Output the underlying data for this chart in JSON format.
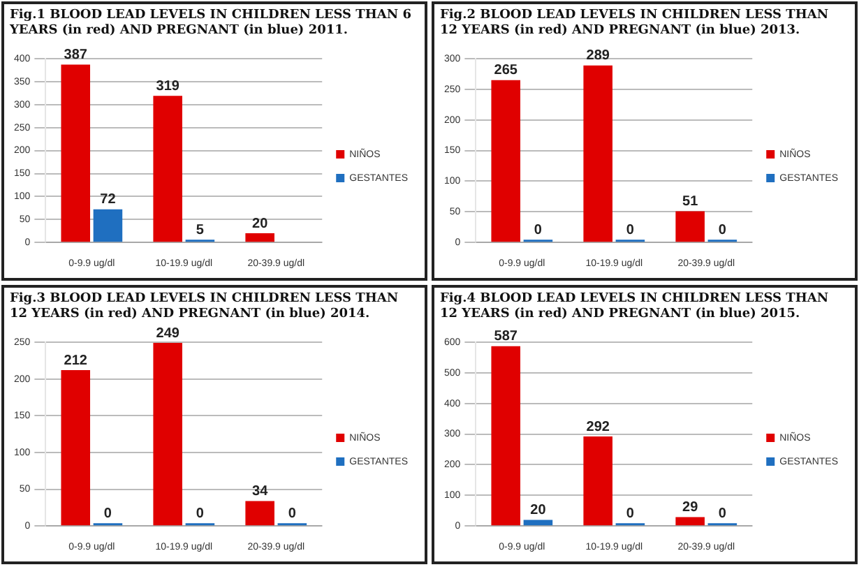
{
  "chart_data": [
    {
      "type": "bar",
      "title": "Fig.1 BLOOD LEAD LEVELS IN CHILDREN LESS THAN 6 YEARS (in red) AND PREGNANT (in blue) 2011.",
      "categories": [
        "0-9.9 ug/dl",
        "10-19.9 ug/dl",
        "20-39.9 ug/dl"
      ],
      "series": [
        {
          "name": "NIÑOS",
          "color": "#e00000",
          "values": [
            387,
            319,
            20
          ]
        },
        {
          "name": "GESTANTES",
          "color": "#1f6fc0",
          "values": [
            72,
            5,
            null
          ]
        }
      ],
      "ylim": [
        0,
        400
      ],
      "yticks": [
        0,
        50,
        100,
        150,
        200,
        250,
        300,
        350,
        400
      ],
      "grid": "y",
      "legend": "right",
      "data_labels": true
    },
    {
      "type": "bar",
      "title": "Fig.2 BLOOD LEAD LEVELS IN CHILDREN LESS THAN 12 YEARS (in red) AND PREGNANT (in blue) 2013.",
      "categories": [
        "0-9.9 ug/dl",
        "10-19.9 ug/dl",
        "20-39.9 ug/dl"
      ],
      "series": [
        {
          "name": "NIÑOS",
          "color": "#e00000",
          "values": [
            265,
            289,
            51
          ]
        },
        {
          "name": "GESTANTES",
          "color": "#1f6fc0",
          "values": [
            0,
            0,
            0
          ]
        }
      ],
      "ylim": [
        0,
        300
      ],
      "yticks": [
        0,
        50,
        100,
        150,
        200,
        250,
        300
      ],
      "grid": "y",
      "legend": "right",
      "data_labels": true
    },
    {
      "type": "bar",
      "title": "Fig.3 BLOOD LEAD LEVELS IN CHILDREN LESS THAN 12 YEARS (in red) AND PREGNANT (in blue) 2014.",
      "categories": [
        "0-9.9 ug/dl",
        "10-19.9 ug/dl",
        "20-39.9 ug/dl"
      ],
      "series": [
        {
          "name": "NIÑOS",
          "color": "#e00000",
          "values": [
            212,
            249,
            34
          ]
        },
        {
          "name": "GESTANTES",
          "color": "#1f6fc0",
          "values": [
            0,
            0,
            0
          ]
        }
      ],
      "ylim": [
        0,
        250
      ],
      "yticks": [
        0,
        50,
        100,
        150,
        200,
        250
      ],
      "grid": "y",
      "legend": "right",
      "data_labels": true
    },
    {
      "type": "bar",
      "title": "Fig.4 BLOOD LEAD LEVELS IN CHILDREN LESS THAN 12 YEARS (in red) AND PREGNANT (in blue) 2015.",
      "categories": [
        "0-9.9 ug/dl",
        "10-19.9 ug/dl",
        "20-39.9 ug/dl"
      ],
      "series": [
        {
          "name": "NIÑOS",
          "color": "#e00000",
          "values": [
            587,
            292,
            29
          ]
        },
        {
          "name": "GESTANTES",
          "color": "#1f6fc0",
          "values": [
            20,
            0,
            0
          ]
        }
      ],
      "ylim": [
        0,
        600
      ],
      "yticks": [
        0,
        100,
        200,
        300,
        400,
        500,
        600
      ],
      "grid": "y",
      "legend": "right",
      "data_labels": true
    }
  ]
}
